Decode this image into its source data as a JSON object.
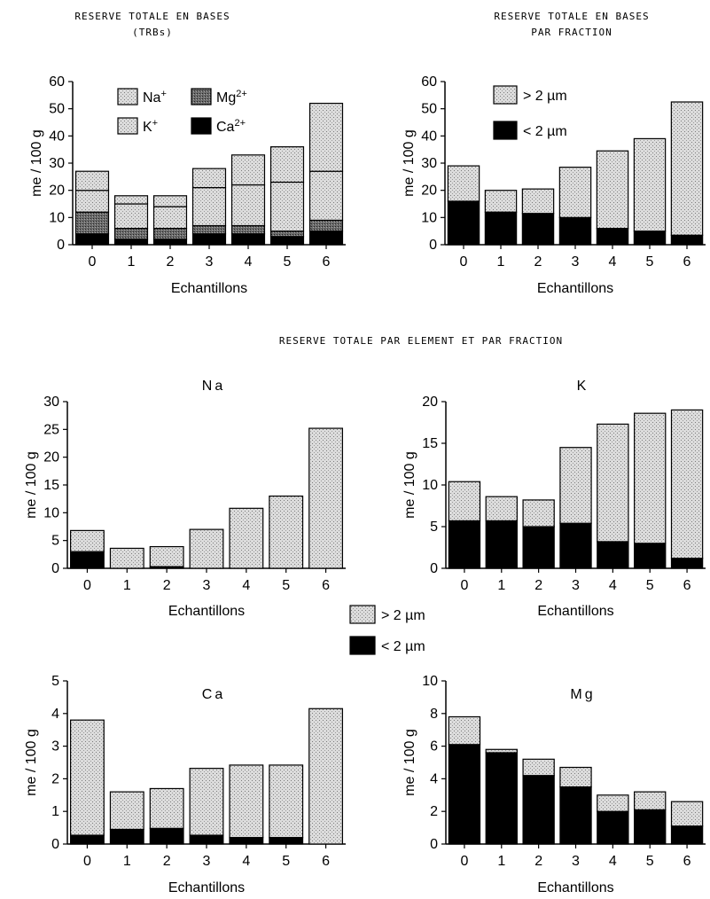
{
  "figure": {
    "top_left_title": [
      "RESERVE TOTALE EN BASES",
      "(TRBs)"
    ],
    "top_right_title": [
      "RESERVE TOTALE EN BASES",
      "PAR FRACTION"
    ],
    "section_title": "RESERVE TOTALE PAR ELEMENT ET PAR FRACTION",
    "colors": {
      "stipple": "#d6d6d6",
      "dark": "#000000",
      "mg_pattern": "#555555"
    }
  },
  "chart_data": [
    {
      "id": "trbs",
      "type": "bar",
      "stacked": true,
      "title": "",
      "xlabel": "Echantillons",
      "ylabel": "me / 100 g",
      "categories": [
        "0",
        "1",
        "2",
        "3",
        "4",
        "5",
        "6"
      ],
      "ylim": [
        0,
        60
      ],
      "yticks": [
        0,
        10,
        20,
        30,
        40,
        50,
        60
      ],
      "legend": "inside-top",
      "series": [
        {
          "name": "Ca",
          "sup": "2+",
          "fill": "dark",
          "values": [
            4,
            2,
            2,
            4,
            4,
            3,
            5
          ]
        },
        {
          "name": "Mg",
          "sup": "2+",
          "fill": "mg",
          "values": [
            8,
            4,
            4,
            3,
            3,
            2,
            4
          ]
        },
        {
          "name": "K",
          "sup": "+",
          "fill": "stipple",
          "values": [
            8,
            9,
            8,
            14,
            15,
            18,
            18
          ]
        },
        {
          "name": "Na",
          "sup": "+",
          "fill": "stipple",
          "values": [
            7,
            3,
            4,
            7,
            11,
            13,
            25
          ]
        }
      ]
    },
    {
      "id": "fraction",
      "type": "bar",
      "stacked": true,
      "title": "",
      "xlabel": "Echantillons",
      "ylabel": "me / 100 g",
      "categories": [
        "0",
        "1",
        "2",
        "3",
        "4",
        "5",
        "6"
      ],
      "ylim": [
        0,
        60
      ],
      "yticks": [
        0,
        10,
        20,
        30,
        40,
        50,
        60
      ],
      "legend": "inside-top-left",
      "series": [
        {
          "name": "< 2 µm",
          "fill": "dark",
          "values": [
            16,
            12,
            11.5,
            10,
            6,
            5,
            3.5
          ]
        },
        {
          "name": "> 2 µm",
          "fill": "stipple",
          "values": [
            13,
            8,
            9,
            18.5,
            28.5,
            34,
            49
          ]
        }
      ]
    },
    {
      "id": "na",
      "type": "bar",
      "stacked": true,
      "title": "Na",
      "xlabel": "Echantillons",
      "ylabel": "me / 100 g",
      "categories": [
        "0",
        "1",
        "2",
        "3",
        "4",
        "5",
        "6"
      ],
      "ylim": [
        0,
        30
      ],
      "yticks": [
        0,
        5,
        10,
        15,
        20,
        25,
        30
      ],
      "series": [
        {
          "name": "< 2 µm",
          "fill": "dark",
          "values": [
            3,
            0,
            0.3,
            0,
            0,
            0,
            0
          ]
        },
        {
          "name": "> 2 µm",
          "fill": "stipple",
          "values": [
            3.8,
            3.6,
            3.6,
            7,
            10.8,
            13,
            25.2
          ]
        }
      ]
    },
    {
      "id": "k",
      "type": "bar",
      "stacked": true,
      "title": "K",
      "xlabel": "Echantillons",
      "ylabel": "me / 100 g",
      "categories": [
        "0",
        "1",
        "2",
        "3",
        "4",
        "5",
        "6"
      ],
      "ylim": [
        0,
        20
      ],
      "yticks": [
        0,
        5,
        10,
        15,
        20
      ],
      "series": [
        {
          "name": "< 2 µm",
          "fill": "dark",
          "values": [
            5.7,
            5.7,
            5,
            5.4,
            3.2,
            3,
            1.2
          ]
        },
        {
          "name": "> 2 µm",
          "fill": "stipple",
          "values": [
            4.7,
            2.9,
            3.2,
            9.1,
            14.1,
            15.6,
            17.8
          ]
        }
      ]
    },
    {
      "id": "ca",
      "type": "bar",
      "stacked": true,
      "title": "Ca",
      "xlabel": "Echantillons",
      "ylabel": "me / 100 g",
      "categories": [
        "0",
        "1",
        "2",
        "3",
        "4",
        "5",
        "6"
      ],
      "ylim": [
        0,
        5
      ],
      "yticks": [
        0,
        1,
        2,
        3,
        4,
        5
      ],
      "series": [
        {
          "name": "< 2 µm",
          "fill": "dark",
          "values": [
            0.27,
            0.45,
            0.48,
            0.27,
            0.2,
            0.2,
            0
          ]
        },
        {
          "name": "> 2 µm",
          "fill": "stipple",
          "values": [
            3.53,
            1.15,
            1.22,
            2.05,
            2.22,
            2.22,
            4.15
          ]
        }
      ]
    },
    {
      "id": "mg",
      "type": "bar",
      "stacked": true,
      "title": "Mg",
      "xlabel": "Echantillons",
      "ylabel": "me / 100 g",
      "categories": [
        "0",
        "1",
        "2",
        "3",
        "4",
        "5",
        "6"
      ],
      "ylim": [
        0,
        10
      ],
      "yticks": [
        0,
        2,
        4,
        6,
        8,
        10
      ],
      "series": [
        {
          "name": "< 2 µm",
          "fill": "dark",
          "values": [
            6.1,
            5.6,
            4.2,
            3.5,
            2,
            2.1,
            1.1
          ]
        },
        {
          "name": "> 2 µm",
          "fill": "stipple",
          "values": [
            1.7,
            0.2,
            1,
            1.2,
            1,
            1.1,
            1.5
          ]
        }
      ]
    }
  ],
  "shared_legend": [
    {
      "label": "> 2 µm",
      "fill": "stipple"
    },
    {
      "label": "< 2 µm",
      "fill": "dark"
    }
  ]
}
